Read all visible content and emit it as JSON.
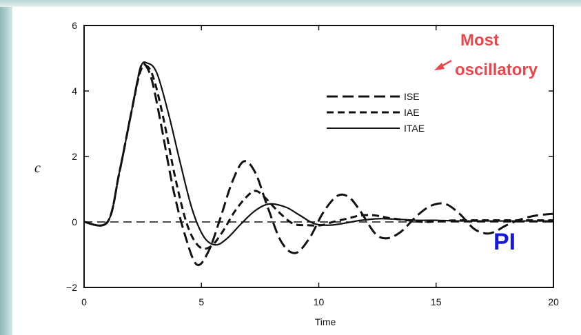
{
  "chart_data": {
    "type": "line",
    "xlabel": "Time",
    "ylabel": "c",
    "xlim": [
      0,
      20
    ],
    "ylim": [
      -2,
      6
    ],
    "x_ticks": [
      "0",
      "5",
      "10",
      "15",
      "20"
    ],
    "y_ticks": [
      "−2",
      "0",
      "2",
      "4",
      "6"
    ],
    "legend_position": "top-right",
    "series": [
      {
        "name": "ISE",
        "style": "long-dash",
        "points": [
          [
            0,
            0
          ],
          [
            1,
            0
          ],
          [
            1.5,
            1.5
          ],
          [
            2,
            3.3
          ],
          [
            2.4,
            4.7
          ],
          [
            2.6,
            4.8
          ],
          [
            2.9,
            4.3
          ],
          [
            3.3,
            2.9
          ],
          [
            3.8,
            1.0
          ],
          [
            4.3,
            -0.4
          ],
          [
            4.8,
            -1.3
          ],
          [
            5.3,
            -0.9
          ],
          [
            5.8,
            0.1
          ],
          [
            6.3,
            1.2
          ],
          [
            6.8,
            1.85
          ],
          [
            7.3,
            1.5
          ],
          [
            7.8,
            0.5
          ],
          [
            8.4,
            -0.6
          ],
          [
            9,
            -0.95
          ],
          [
            9.6,
            -0.5
          ],
          [
            10.2,
            0.3
          ],
          [
            10.8,
            0.8
          ],
          [
            11.3,
            0.75
          ],
          [
            11.8,
            0.3
          ],
          [
            12.4,
            -0.35
          ],
          [
            12.9,
            -0.5
          ],
          [
            13.5,
            -0.3
          ],
          [
            14.2,
            0.2
          ],
          [
            14.8,
            0.5
          ],
          [
            15.4,
            0.55
          ],
          [
            16,
            0.25
          ],
          [
            16.6,
            -0.2
          ],
          [
            17.1,
            -0.35
          ],
          [
            17.5,
            -0.3
          ],
          [
            18,
            -0.1
          ],
          [
            18.7,
            0.1
          ],
          [
            19.3,
            0.2
          ],
          [
            20,
            0.25
          ]
        ]
      },
      {
        "name": "IAE",
        "style": "short-dash",
        "points": [
          [
            0,
            0
          ],
          [
            1,
            0
          ],
          [
            1.5,
            1.5
          ],
          [
            2,
            3.3
          ],
          [
            2.4,
            4.6
          ],
          [
            2.7,
            4.75
          ],
          [
            3,
            4.3
          ],
          [
            3.4,
            3.1
          ],
          [
            3.9,
            1.3
          ],
          [
            4.4,
            -0.1
          ],
          [
            4.9,
            -0.75
          ],
          [
            5.4,
            -0.75
          ],
          [
            5.9,
            -0.3
          ],
          [
            6.4,
            0.3
          ],
          [
            6.9,
            0.75
          ],
          [
            7.3,
            0.95
          ],
          [
            7.7,
            0.75
          ],
          [
            8.3,
            0.3
          ],
          [
            8.9,
            -0.05
          ],
          [
            9.5,
            -0.1
          ],
          [
            10.1,
            -0.1
          ],
          [
            10.6,
            0
          ],
          [
            11.2,
            0.1
          ],
          [
            11.8,
            0.2
          ],
          [
            12.4,
            0.2
          ],
          [
            13,
            0.12
          ],
          [
            13.8,
            0.05
          ],
          [
            14.5,
            0
          ],
          [
            15.2,
            0.03
          ],
          [
            16,
            0.05
          ],
          [
            17,
            0.05
          ],
          [
            18,
            0.05
          ],
          [
            19,
            0.05
          ],
          [
            20,
            0.05
          ]
        ]
      },
      {
        "name": "ITAE",
        "style": "solid",
        "points": [
          [
            0,
            0
          ],
          [
            1,
            0
          ],
          [
            1.5,
            1.5
          ],
          [
            2,
            3.3
          ],
          [
            2.4,
            4.7
          ],
          [
            2.7,
            4.85
          ],
          [
            3.1,
            4.55
          ],
          [
            3.6,
            3.3
          ],
          [
            4.1,
            1.8
          ],
          [
            4.6,
            0.4
          ],
          [
            5.1,
            -0.45
          ],
          [
            5.6,
            -0.7
          ],
          [
            6.1,
            -0.5
          ],
          [
            6.7,
            -0.05
          ],
          [
            7.3,
            0.35
          ],
          [
            7.9,
            0.55
          ],
          [
            8.6,
            0.45
          ],
          [
            9.2,
            0.2
          ],
          [
            9.8,
            -0.05
          ],
          [
            10.4,
            -0.1
          ],
          [
            11.0,
            -0.05
          ],
          [
            11.8,
            0.05
          ],
          [
            12.6,
            0.1
          ],
          [
            13.4,
            0.08
          ],
          [
            14.2,
            0.05
          ],
          [
            15,
            0.05
          ],
          [
            16,
            0.03
          ],
          [
            17,
            0.03
          ],
          [
            18,
            0.03
          ],
          [
            19,
            0.03
          ],
          [
            20,
            0.03
          ]
        ]
      },
      {
        "name": "",
        "style": "reference-dash",
        "points": [
          [
            0,
            0
          ],
          [
            20,
            0
          ]
        ]
      }
    ],
    "annotations": [
      {
        "text": "Most",
        "color": "#e8474b"
      },
      {
        "text": "oscillatory",
        "color": "#e8474b"
      },
      {
        "text": "PI",
        "color": "#1818d8"
      }
    ]
  }
}
